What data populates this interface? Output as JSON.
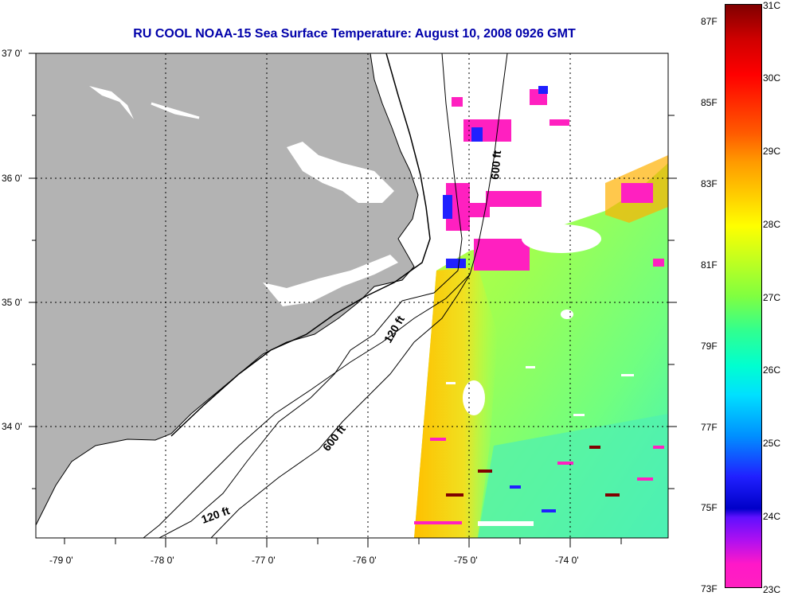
{
  "title": "RU COOL  NOAA-15  Sea Surface Temperature:  August 10, 2008 0926 GMT",
  "lat_ticks": [
    "37 0'",
    "36 0'",
    "35 0'",
    "34 0'"
  ],
  "lon_ticks": [
    "-79 0'",
    "-78 0'",
    "-77 0'",
    "-76 0'",
    "-75 0'",
    "-74 0'"
  ],
  "isobath_labels": {
    "north_600": "600 ft",
    "mid_120": "120 ft",
    "south_600": "600 ft",
    "south_120": "120 ft"
  },
  "colorbar": {
    "fahrenheit": [
      "87F",
      "85F",
      "83F",
      "81F",
      "79F",
      "77F",
      "75F",
      "73F"
    ],
    "celsius": [
      "31C",
      "30C",
      "29C",
      "28C",
      "27C",
      "26C",
      "25C",
      "24C",
      "23C"
    ]
  },
  "colors": {
    "land": "#b3b3b3",
    "title": "#0000aa"
  }
}
